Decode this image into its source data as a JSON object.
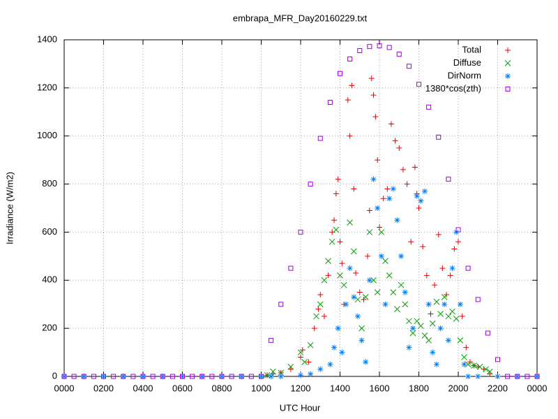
{
  "chart_data": {
    "type": "scatter",
    "title": "embrapa_MFR_Day20160229.txt",
    "x_label": "UTC Hour",
    "y_label": "Irradiance (W/m2)",
    "xlim": [
      0,
      24
    ],
    "ylim": [
      0,
      1400
    ],
    "xticks": [
      {
        "value": 0,
        "label": "0000"
      },
      {
        "value": 2,
        "label": "0200"
      },
      {
        "value": 4,
        "label": "0400"
      },
      {
        "value": 6,
        "label": "0600"
      },
      {
        "value": 8,
        "label": "0800"
      },
      {
        "value": 10,
        "label": "1000"
      },
      {
        "value": 12,
        "label": "1200"
      },
      {
        "value": 14,
        "label": "1400"
      },
      {
        "value": 16,
        "label": "1600"
      },
      {
        "value": 18,
        "label": "1800"
      },
      {
        "value": 20,
        "label": "2000"
      },
      {
        "value": 22,
        "label": "2200"
      },
      {
        "value": 24,
        "label": "0000"
      }
    ],
    "yticks": [
      0,
      200,
      400,
      600,
      800,
      1000,
      1200,
      1400
    ],
    "grid": true,
    "legend": "top-right",
    "series": [
      {
        "name": "Total",
        "color": "#e00000",
        "marker": "plus",
        "x": [
          10.3,
          10.6,
          11,
          11.5,
          12,
          12.1,
          12.4,
          12.7,
          12.9,
          13,
          13.2,
          13.4,
          13.6,
          13.7,
          13.8,
          13.9,
          14,
          14.1,
          14.2,
          14.4,
          14.5,
          14.6,
          14.7,
          14.8,
          15,
          15.2,
          15.4,
          15.5,
          15.6,
          15.7,
          15.8,
          15.9,
          16,
          16.2,
          16.4,
          16.6,
          16.8,
          17,
          17.2,
          17.4,
          17.6,
          17.8,
          17.9,
          18,
          18.2,
          18.4,
          18.6,
          18.8,
          19,
          19.2,
          19.4,
          19.6,
          19.8,
          20,
          20.2,
          20.4,
          20.6,
          20.8,
          21,
          21.3,
          21.6
        ],
        "values": [
          5,
          10,
          15,
          30,
          80,
          110,
          60,
          200,
          280,
          340,
          250,
          420,
          600,
          650,
          760,
          820,
          560,
          470,
          300,
          1150,
          1000,
          1210,
          780,
          430,
          350,
          320,
          500,
          690,
          1240,
          1170,
          1080,
          900,
          620,
          740,
          780,
          1050,
          980,
          950,
          860,
          800,
          560,
          870,
          760,
          700,
          540,
          420,
          260,
          380,
          590,
          450,
          340,
          420,
          530,
          560,
          250,
          120,
          60,
          45,
          40,
          30,
          10
        ]
      },
      {
        "name": "Diffuse",
        "color": "#00a000",
        "marker": "cross",
        "x": [
          10.3,
          10.6,
          11,
          11.5,
          12,
          12.2,
          12.5,
          12.8,
          13,
          13.2,
          13.4,
          13.6,
          13.8,
          14,
          14.2,
          14.5,
          14.7,
          14.9,
          15.1,
          15.3,
          15.5,
          15.7,
          15.9,
          16.1,
          16.3,
          16.5,
          16.7,
          16.9,
          17.1,
          17.3,
          17.5,
          17.7,
          17.9,
          18.1,
          18.3,
          18.5,
          18.7,
          18.9,
          19.1,
          19.3,
          19.5,
          19.7,
          19.9,
          20.1,
          20.3,
          20.5,
          20.8,
          21.1,
          21.4,
          21.6
        ],
        "values": [
          5,
          20,
          15,
          40,
          100,
          60,
          130,
          250,
          300,
          400,
          480,
          560,
          610,
          420,
          380,
          640,
          520,
          320,
          200,
          330,
          600,
          400,
          350,
          600,
          480,
          420,
          350,
          280,
          380,
          300,
          230,
          180,
          230,
          210,
          170,
          150,
          220,
          310,
          260,
          330,
          250,
          270,
          240,
          150,
          80,
          50,
          45,
          40,
          30,
          20
        ]
      },
      {
        "name": "DirNorm",
        "color": "#0080ff",
        "marker": "star",
        "x": [
          0,
          1,
          2,
          3,
          4,
          5,
          6,
          7,
          8,
          9,
          10,
          10.5,
          11,
          12,
          12.5,
          13,
          13.5,
          13.7,
          13.9,
          14.1,
          14.3,
          14.5,
          14.7,
          14.9,
          15.1,
          15.3,
          15.5,
          15.7,
          15.9,
          16.1,
          16.3,
          16.5,
          16.7,
          16.9,
          17.1,
          17.3,
          17.5,
          17.7,
          17.9,
          18.1,
          18.3,
          18.5,
          18.7,
          18.9,
          19.1,
          19.3,
          19.5,
          19.7,
          19.9,
          20.1,
          20.3,
          20.5,
          21,
          22,
          23,
          24
        ],
        "values": [
          0,
          0,
          0,
          0,
          0,
          0,
          0,
          0,
          0,
          0,
          0,
          0,
          0,
          5,
          10,
          30,
          50,
          120,
          200,
          100,
          300,
          450,
          330,
          250,
          150,
          60,
          400,
          820,
          700,
          500,
          300,
          740,
          780,
          650,
          500,
          350,
          120,
          200,
          750,
          730,
          770,
          300,
          100,
          50,
          200,
          300,
          150,
          450,
          600,
          300,
          50,
          0,
          0,
          0,
          0,
          0
        ]
      },
      {
        "name": "1380*cos(zth)",
        "color": "#a000e0",
        "marker": "square",
        "x": [
          0,
          0.5,
          1,
          1.5,
          2,
          2.5,
          3,
          3.5,
          4,
          4.5,
          5,
          5.5,
          6,
          6.5,
          7,
          7.5,
          8,
          8.5,
          9,
          9.5,
          10,
          10.5,
          11,
          11.5,
          12,
          12.5,
          13,
          13.5,
          14,
          14.5,
          15,
          15.5,
          16,
          16.5,
          17,
          17.5,
          18,
          18.5,
          19,
          19.5,
          20,
          20.5,
          21,
          21.5,
          22,
          22.5,
          23,
          23.5,
          24
        ],
        "values": [
          0,
          0,
          0,
          0,
          0,
          0,
          0,
          0,
          0,
          0,
          0,
          0,
          0,
          0,
          0,
          0,
          0,
          0,
          0,
          0,
          0,
          150,
          300,
          450,
          600,
          800,
          990,
          1140,
          1260,
          1320,
          1355,
          1372,
          1375,
          1368,
          1340,
          1290,
          1215,
          1120,
          995,
          820,
          610,
          450,
          320,
          180,
          70,
          0,
          0,
          0,
          0
        ]
      }
    ]
  }
}
